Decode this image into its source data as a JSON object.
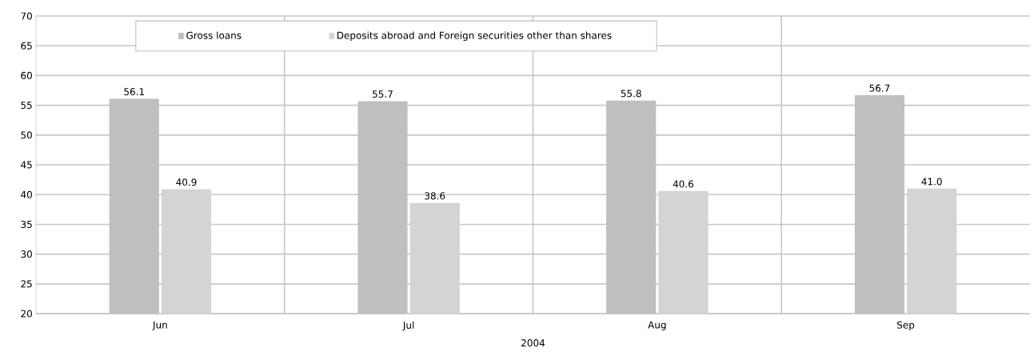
{
  "chart_data": {
    "type": "bar",
    "xlabel": "2004",
    "categories": [
      "Jun",
      "Jul",
      "Aug",
      "Sep"
    ],
    "series": [
      {
        "name": "Gross loans",
        "color": "#bfbfbf",
        "values": [
          56.1,
          55.7,
          55.8,
          56.7
        ],
        "value_labels": [
          "56.1",
          "55.7",
          "55.8",
          "56.7"
        ]
      },
      {
        "name": "Deposits abroad and Foreign securities other than shares",
        "color": "#d4d4d4",
        "values": [
          40.9,
          38.6,
          40.6,
          41.0
        ],
        "value_labels": [
          "40.9",
          "38.6",
          "40.6",
          "41.0"
        ]
      }
    ],
    "ylim": [
      20,
      70
    ],
    "yticks": [
      20,
      25,
      30,
      35,
      40,
      45,
      50,
      55,
      60,
      65,
      70
    ],
    "grid": true,
    "legend": "top"
  }
}
